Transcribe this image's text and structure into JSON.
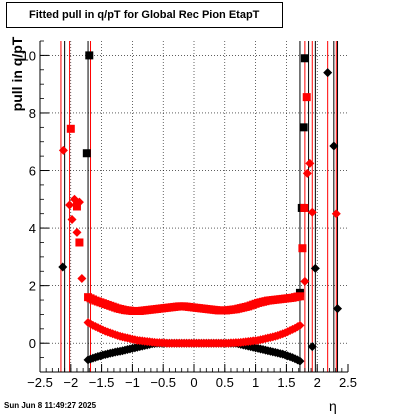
{
  "title": "Fitted pull in q/pT for Global Rec Pion EtapT",
  "datestamp": "Sun Jun  8 11:49:27 2025",
  "chart_data": {
    "type": "scatter",
    "title": "Fitted pull in q/pT for Global Rec Pion EtapT",
    "xlabel": "η",
    "ylabel": "pull in q/pT",
    "xlim": [
      -2.5,
      2.5
    ],
    "ylim": [
      -1.0,
      10.5
    ],
    "xticks": [
      -2.5,
      -2,
      -1.5,
      -1,
      -0.5,
      0,
      0.5,
      1,
      1.5,
      2,
      2.5
    ],
    "xtick_labels": [
      "−2.5",
      "−2",
      "−1.5",
      "−1",
      "−0.5",
      "0",
      "0.5",
      "1",
      "1.5",
      "2",
      "2.5"
    ],
    "yticks": [
      0,
      2,
      4,
      6,
      8,
      10
    ],
    "ytick_labels": [
      "0",
      "2",
      "4",
      "6",
      "8",
      "10"
    ],
    "grid": true,
    "colors": {
      "black": "#000000",
      "red": "#ff0000"
    },
    "series": [
      {
        "color": "#000000",
        "marker": "square",
        "x": [
          -1.74,
          -1.7,
          1.72,
          1.75,
          1.78,
          1.8
        ],
        "y": [
          6.6,
          10.0,
          1.75,
          4.7,
          7.5,
          9.9
        ]
      },
      {
        "color": "#000000",
        "marker": "diamond",
        "x": [
          -2.13,
          -1.72,
          -1.68,
          -1.64,
          -1.6,
          -1.56,
          -1.52,
          -1.48,
          -1.44,
          -1.4,
          -1.36,
          -1.32,
          -1.28,
          -1.24,
          -1.2,
          -1.16,
          -1.12,
          -1.08,
          -1.04,
          -1.0,
          -0.96,
          -0.92,
          -0.88,
          -0.84,
          -0.8,
          -0.76,
          -0.72,
          -0.68,
          -0.64,
          -0.6,
          -0.56,
          -0.52,
          -0.48,
          -0.44,
          -0.4,
          -0.36,
          -0.32,
          -0.28,
          -0.24,
          -0.2,
          -0.16,
          -0.12,
          -0.08,
          -0.04,
          0.0,
          0.04,
          0.08,
          0.12,
          0.16,
          0.2,
          0.24,
          0.28,
          0.32,
          0.36,
          0.4,
          0.44,
          0.48,
          0.52,
          0.56,
          0.6,
          0.64,
          0.68,
          0.72,
          0.76,
          0.8,
          0.84,
          0.88,
          0.92,
          0.96,
          1.0,
          1.04,
          1.08,
          1.12,
          1.16,
          1.2,
          1.24,
          1.28,
          1.32,
          1.36,
          1.4,
          1.44,
          1.48,
          1.52,
          1.56,
          1.6,
          1.64,
          1.68,
          1.72,
          1.92,
          1.97,
          2.17,
          2.27,
          2.33
        ],
        "y": [
          2.65,
          -0.58,
          -0.55,
          -0.52,
          -0.49,
          -0.46,
          -0.44,
          -0.41,
          -0.39,
          -0.37,
          -0.35,
          -0.33,
          -0.31,
          -0.29,
          -0.28,
          -0.26,
          -0.24,
          -0.22,
          -0.2,
          -0.18,
          -0.16,
          -0.14,
          -0.12,
          -0.1,
          -0.08,
          -0.06,
          -0.04,
          -0.02,
          -0.01,
          0.0,
          0.0,
          0.0,
          0.0,
          0.0,
          0.0,
          0.0,
          0.0,
          0.0,
          0.0,
          0.0,
          0.0,
          0.0,
          0.0,
          0.0,
          0.0,
          0.0,
          0.0,
          0.0,
          0.0,
          0.0,
          0.0,
          0.0,
          0.0,
          0.0,
          0.0,
          0.0,
          0.0,
          0.0,
          0.0,
          0.0,
          0.0,
          0.0,
          -0.02,
          -0.04,
          -0.06,
          -0.08,
          -0.1,
          -0.12,
          -0.14,
          -0.16,
          -0.18,
          -0.2,
          -0.22,
          -0.24,
          -0.26,
          -0.28,
          -0.3,
          -0.32,
          -0.34,
          -0.36,
          -0.38,
          -0.41,
          -0.44,
          -0.47,
          -0.5,
          -0.54,
          -0.58,
          -0.62,
          -0.12,
          2.6,
          9.4,
          6.85,
          1.2
        ]
      },
      {
        "color": "#ff0000",
        "marker": "square",
        "x": [
          -2.0,
          -1.9,
          -1.86,
          -1.72,
          -1.68,
          -1.64,
          -1.6,
          -1.56,
          -1.52,
          -1.48,
          -1.44,
          -1.4,
          -1.36,
          -1.32,
          -1.28,
          -1.24,
          -1.2,
          -1.16,
          -1.12,
          -1.08,
          -1.04,
          -1.0,
          -0.96,
          -0.92,
          -0.88,
          -0.84,
          -0.8,
          -0.76,
          -0.72,
          -0.68,
          -0.64,
          -0.6,
          -0.56,
          -0.52,
          -0.48,
          -0.44,
          -0.4,
          -0.36,
          -0.32,
          -0.28,
          -0.24,
          -0.2,
          -0.16,
          -0.12,
          -0.08,
          -0.04,
          0.0,
          0.04,
          0.08,
          0.12,
          0.16,
          0.2,
          0.24,
          0.28,
          0.32,
          0.36,
          0.4,
          0.44,
          0.48,
          0.52,
          0.56,
          0.6,
          0.64,
          0.68,
          0.72,
          0.76,
          0.8,
          0.84,
          0.88,
          0.92,
          0.96,
          1.0,
          1.04,
          1.08,
          1.12,
          1.16,
          1.2,
          1.24,
          1.28,
          1.32,
          1.36,
          1.4,
          1.44,
          1.48,
          1.52,
          1.56,
          1.6,
          1.64,
          1.68,
          1.72,
          1.76,
          1.79,
          1.83
        ],
        "y": [
          7.45,
          4.75,
          3.5,
          1.6,
          1.56,
          1.52,
          1.48,
          1.45,
          1.42,
          1.39,
          1.36,
          1.33,
          1.3,
          1.27,
          1.24,
          1.21,
          1.19,
          1.17,
          1.15,
          1.14,
          1.13,
          1.12,
          1.12,
          1.12,
          1.12,
          1.13,
          1.14,
          1.15,
          1.16,
          1.17,
          1.18,
          1.19,
          1.2,
          1.21,
          1.22,
          1.23,
          1.24,
          1.25,
          1.26,
          1.27,
          1.28,
          1.28,
          1.28,
          1.27,
          1.26,
          1.25,
          1.24,
          1.23,
          1.22,
          1.21,
          1.2,
          1.19,
          1.18,
          1.17,
          1.16,
          1.15,
          1.14,
          1.14,
          1.14,
          1.14,
          1.15,
          1.16,
          1.17,
          1.18,
          1.2,
          1.22,
          1.24,
          1.26,
          1.28,
          1.31,
          1.34,
          1.37,
          1.4,
          1.42,
          1.44,
          1.46,
          1.48,
          1.49,
          1.5,
          1.51,
          1.52,
          1.53,
          1.54,
          1.55,
          1.56,
          1.57,
          1.58,
          1.6,
          1.62,
          1.63,
          3.3,
          4.7,
          8.55
        ]
      },
      {
        "color": "#ff0000",
        "marker": "diamond",
        "x": [
          -2.12,
          -2.02,
          -1.98,
          -1.94,
          -1.9,
          -1.86,
          -1.82,
          -1.72,
          -1.68,
          -1.64,
          -1.6,
          -1.56,
          -1.52,
          -1.48,
          -1.44,
          -1.4,
          -1.36,
          -1.32,
          -1.28,
          -1.24,
          -1.2,
          -1.16,
          -1.12,
          -1.08,
          -1.04,
          -1.0,
          -0.96,
          -0.92,
          -0.88,
          -0.84,
          -0.8,
          -0.76,
          -0.72,
          -0.68,
          -0.64,
          -0.6,
          -0.56,
          -0.52,
          -0.48,
          -0.44,
          -0.4,
          -0.36,
          -0.32,
          -0.28,
          -0.24,
          -0.2,
          -0.16,
          -0.12,
          -0.08,
          -0.04,
          0.0,
          0.04,
          0.08,
          0.12,
          0.16,
          0.2,
          0.24,
          0.28,
          0.32,
          0.36,
          0.4,
          0.44,
          0.48,
          0.52,
          0.56,
          0.6,
          0.64,
          0.68,
          0.72,
          0.76,
          0.8,
          0.84,
          0.88,
          0.92,
          0.96,
          1.0,
          1.04,
          1.08,
          1.12,
          1.16,
          1.2,
          1.24,
          1.28,
          1.32,
          1.36,
          1.4,
          1.44,
          1.48,
          1.52,
          1.56,
          1.6,
          1.64,
          1.68,
          1.72,
          1.8,
          1.84,
          1.88,
          1.92,
          2.31
        ],
        "y": [
          6.7,
          4.8,
          4.3,
          5.0,
          3.85,
          4.9,
          2.25,
          0.72,
          0.67,
          0.62,
          0.58,
          0.54,
          0.5,
          0.46,
          0.42,
          0.39,
          0.36,
          0.33,
          0.3,
          0.27,
          0.24,
          0.22,
          0.2,
          0.18,
          0.16,
          0.14,
          0.12,
          0.1,
          0.09,
          0.08,
          0.07,
          0.06,
          0.05,
          0.04,
          0.03,
          0.02,
          0.02,
          0.01,
          0.01,
          0.0,
          0.0,
          0.0,
          0.0,
          0.0,
          0.0,
          0.0,
          0.0,
          0.0,
          0.0,
          0.0,
          0.0,
          0.0,
          0.0,
          0.0,
          0.0,
          0.0,
          0.0,
          0.0,
          0.0,
          0.0,
          0.0,
          0.0,
          0.0,
          0.0,
          0.0,
          0.01,
          0.01,
          0.02,
          0.02,
          0.03,
          0.04,
          0.05,
          0.06,
          0.07,
          0.08,
          0.09,
          0.1,
          0.12,
          0.14,
          0.16,
          0.18,
          0.2,
          0.22,
          0.24,
          0.27,
          0.3,
          0.33,
          0.36,
          0.4,
          0.44,
          0.48,
          0.52,
          0.57,
          0.62,
          2.15,
          5.9,
          6.25,
          4.55,
          4.5
        ]
      }
    ],
    "vertical_lines_x": [
      -2.16,
      -2.1,
      -2.02,
      -1.72,
      -1.68,
      1.72,
      1.8,
      1.86,
      1.92,
      1.97,
      2.17,
      2.27,
      2.31,
      2.33
    ]
  }
}
